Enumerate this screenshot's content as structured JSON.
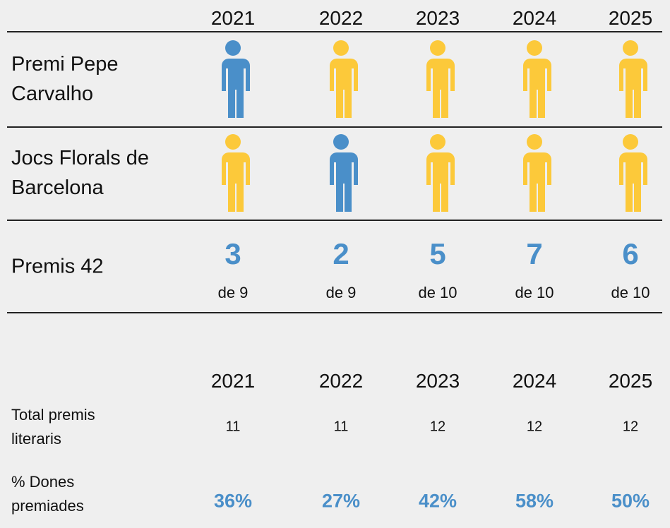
{
  "years": [
    "2021",
    "2022",
    "2023",
    "2024",
    "2025"
  ],
  "awards": [
    {
      "name": "Premi Pepe Carvalho",
      "icon_colors": [
        "#4a8fc9",
        "#fcc93a",
        "#fcc93a",
        "#fcc93a",
        "#fcc93a"
      ]
    },
    {
      "name": "Jocs Florals de Barcelona",
      "icon_colors": [
        "#fcc93a",
        "#4a8fc9",
        "#fcc93a",
        "#fcc93a",
        "#fcc93a"
      ]
    }
  ],
  "premis42": {
    "name": "Premis 42",
    "counts": [
      3,
      2,
      5,
      7,
      6
    ],
    "totals": [
      "de 9",
      "de 9",
      "de 10",
      "de 10",
      "de 10"
    ],
    "color": "#4a8fc9"
  },
  "summary": {
    "years": [
      "2021",
      "2022",
      "2023",
      "2024",
      "2025"
    ],
    "rows": [
      {
        "label": "Total premis literaris",
        "values": [
          11,
          11,
          12,
          12,
          12
        ]
      },
      {
        "label": "% Dones premiades",
        "values": [
          36,
          27,
          42,
          58,
          50
        ],
        "value_labels": [
          "36%",
          "27%",
          "42%",
          "58%",
          "50%"
        ],
        "color": "#4a8fc9"
      }
    ]
  }
}
